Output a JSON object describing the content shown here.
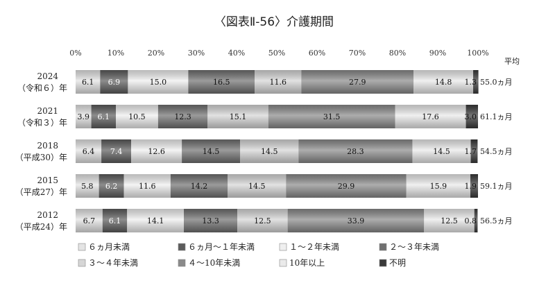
{
  "chart_data": {
    "type": "bar",
    "stacked": true,
    "orientation": "horizontal",
    "percent": true,
    "title": "〈図表Ⅱ-56〉介護期間",
    "avg_header": "平均",
    "xlim": [
      0,
      100
    ],
    "x_ticks": [
      "0%",
      "10%",
      "20%",
      "30%",
      "40%",
      "50%",
      "60%",
      "70%",
      "80%",
      "90%",
      "100%"
    ],
    "categories": [
      {
        "year": "2024",
        "era": "（令和６）年"
      },
      {
        "year": "2021",
        "era": "（令和３）年"
      },
      {
        "year": "2018",
        "era": "（平成30）年"
      },
      {
        "year": "2015",
        "era": "（平成27）年"
      },
      {
        "year": "2012",
        "era": "（平成24）年"
      }
    ],
    "series": [
      {
        "name": "６ヵ月未満",
        "values": [
          6.1,
          3.9,
          6.4,
          5.8,
          6.7
        ],
        "color": "#e4e4e4"
      },
      {
        "name": "６ヵ月～１年未満",
        "values": [
          6.9,
          6.1,
          7.4,
          6.2,
          6.1
        ],
        "color": "#5c5c5c"
      },
      {
        "name": "１～２年未満",
        "values": [
          15.0,
          10.5,
          12.6,
          11.6,
          14.1
        ],
        "color": "#efefef"
      },
      {
        "name": "２～３年未満",
        "values": [
          16.5,
          12.3,
          14.5,
          14.2,
          13.3
        ],
        "color": "#707070"
      },
      {
        "name": "３～４年未満",
        "values": [
          11.6,
          15.1,
          14.5,
          14.5,
          12.5
        ],
        "color": "#d6d6d6"
      },
      {
        "name": "４～10年未満",
        "values": [
          27.9,
          31.5,
          28.3,
          29.9,
          33.9
        ],
        "color": "#8a8a8a"
      },
      {
        "name": "10年以上",
        "values": [
          14.8,
          17.6,
          14.5,
          15.9,
          12.5
        ],
        "color": "#eaeaea"
      },
      {
        "name": "不明",
        "values": [
          1.3,
          3.0,
          1.7,
          1.9,
          0.8
        ],
        "color": "#3a3a3a"
      }
    ],
    "value_labels": [
      [
        "6.1",
        "6.9",
        "15.0",
        "16.5",
        "11.6",
        "27.9",
        "14.8",
        "1.3"
      ],
      [
        "3.9",
        "6.1",
        "10.5",
        "12.3",
        "15.1",
        "31.5",
        "17.6",
        "3.0"
      ],
      [
        "6.4",
        "7.4",
        "12.6",
        "14.5",
        "14.5",
        "28.3",
        "14.5",
        "1.7"
      ],
      [
        "5.8",
        "6.2",
        "11.6",
        "14.2",
        "14.5",
        "29.9",
        "15.9",
        "1.9"
      ],
      [
        "6.7",
        "6.1",
        "14.1",
        "13.3",
        "12.5",
        "33.9",
        "12.5",
        "0.8"
      ]
    ],
    "averages": [
      "55.0ヵ月",
      "61.1ヵ月",
      "54.5ヵ月",
      "59.1ヵ月",
      "56.5ヵ月"
    ],
    "legend_position": "bottom"
  }
}
